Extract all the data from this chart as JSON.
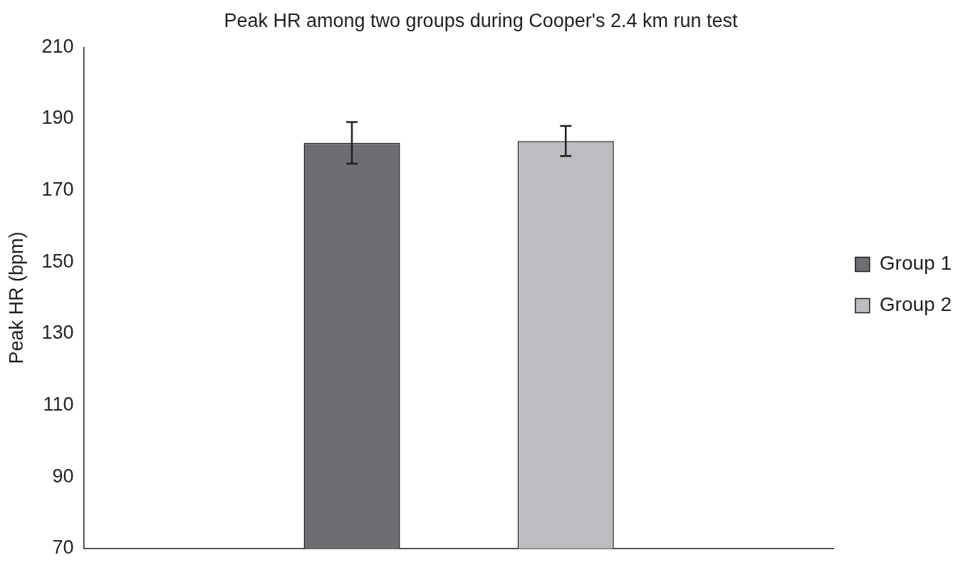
{
  "chart_data": {
    "type": "bar",
    "title": "Peak HR among two groups during Cooper's 2.4 km run test",
    "ylabel": "Peak HR (bpm)",
    "categories": [
      null
    ],
    "series": [
      {
        "name": "Group 1",
        "color": "#6d6e71",
        "values": [
          183.3
        ],
        "errors": [
          5.8
        ]
      },
      {
        "name": "Group 2",
        "color": "#bcbdc0",
        "values": [
          183.8
        ],
        "errors": [
          4.2
        ]
      }
    ],
    "ylim": [
      70,
      210
    ],
    "yticks": [
      70,
      90,
      110,
      130,
      150,
      170,
      190,
      210
    ],
    "grid": false,
    "legend": "right"
  }
}
